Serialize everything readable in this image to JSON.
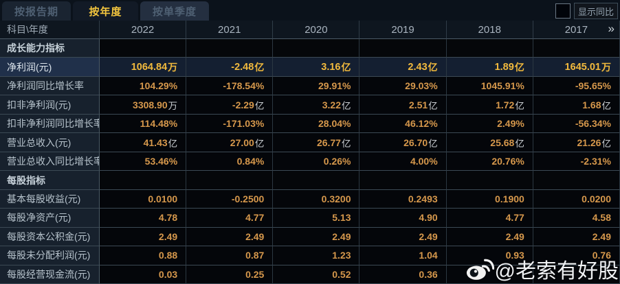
{
  "tabs": [
    {
      "label": "按报告期",
      "active": false
    },
    {
      "label": "按年度",
      "active": true
    },
    {
      "label": "按单季度",
      "active": false
    }
  ],
  "show_yoy": {
    "label": "显示同比",
    "checked": false
  },
  "table": {
    "corner_header": "科目\\年度",
    "year_columns": [
      "2022",
      "2021",
      "2020",
      "2019",
      "2018",
      "2017"
    ],
    "more_icon": "»",
    "rows": [
      {
        "type": "section",
        "highlight": false,
        "label": "成长能力指标",
        "values": [
          "",
          "",
          "",
          "",
          "",
          ""
        ]
      },
      {
        "type": "data",
        "highlight": true,
        "label": "净利润(元)",
        "values": [
          "1064.84万",
          "-2.48亿",
          "3.16亿",
          "2.43亿",
          "1.89亿",
          "1645.01万"
        ]
      },
      {
        "type": "data",
        "highlight": false,
        "label": "净利润同比增长率",
        "values": [
          "104.29%",
          "-178.54%",
          "29.91%",
          "29.03%",
          "1045.91%",
          "-95.65%"
        ]
      },
      {
        "type": "data",
        "highlight": false,
        "label": "扣非净利润(元)",
        "values": [
          "3308.90万",
          "-2.29亿",
          "3.22亿",
          "2.51亿",
          "1.72亿",
          "1.68亿"
        ]
      },
      {
        "type": "data",
        "highlight": false,
        "label": "扣非净利润同比增长率",
        "values": [
          "114.48%",
          "-171.03%",
          "28.04%",
          "46.12%",
          "2.49%",
          "-56.34%"
        ]
      },
      {
        "type": "data",
        "highlight": false,
        "label": "营业总收入(元)",
        "values": [
          "41.43亿",
          "27.00亿",
          "26.77亿",
          "26.70亿",
          "25.68亿",
          "21.26亿"
        ]
      },
      {
        "type": "data",
        "highlight": false,
        "label": "营业总收入同比增长率",
        "values": [
          "53.46%",
          "0.84%",
          "0.26%",
          "4.00%",
          "20.76%",
          "-2.31%"
        ]
      },
      {
        "type": "section",
        "highlight": false,
        "label": "每股指标",
        "values": [
          "",
          "",
          "",
          "",
          "",
          ""
        ]
      },
      {
        "type": "data",
        "highlight": false,
        "label": "基本每股收益(元)",
        "values": [
          "0.0100",
          "-0.2500",
          "0.3200",
          "0.2493",
          "0.1900",
          "0.0200"
        ]
      },
      {
        "type": "data",
        "highlight": false,
        "label": "每股净资产(元)",
        "values": [
          "4.78",
          "4.77",
          "5.13",
          "4.90",
          "4.77",
          "4.58"
        ]
      },
      {
        "type": "data",
        "highlight": false,
        "label": "每股资本公积金(元)",
        "values": [
          "2.49",
          "2.49",
          "2.49",
          "2.49",
          "2.49",
          "2.49"
        ]
      },
      {
        "type": "data",
        "highlight": false,
        "label": "每股未分配利润(元)",
        "values": [
          "0.88",
          "0.87",
          "1.23",
          "1.04",
          "0.93",
          "0.76"
        ]
      },
      {
        "type": "data",
        "highlight": false,
        "label": "每股经营现金流(元)",
        "values": [
          "0.03",
          "0.25",
          "0.52",
          "0.36",
          "",
          ""
        ]
      }
    ]
  },
  "watermark": {
    "text": "@老索有好股",
    "icon": "weibo-logo"
  },
  "colors": {
    "accent_gold": "#f4c63e",
    "value_orange": "#d6984c",
    "unit_gray": "#c9cdd1",
    "highlight_row_bg": "#141f31",
    "label_column_bg": "#17212d",
    "value_cell_bg": "#04060a",
    "header_row_bg": "#0e161f"
  }
}
